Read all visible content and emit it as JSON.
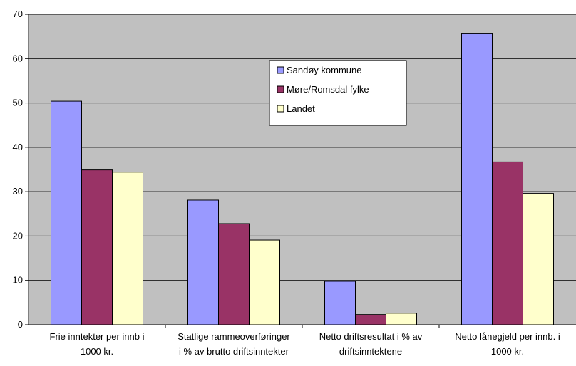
{
  "chart_data": {
    "type": "bar",
    "categories": [
      [
        "Frie inntekter per innb i",
        "1000 kr."
      ],
      [
        "Statlige rammeoverføringer",
        "i % av brutto driftsinntekter"
      ],
      [
        "Netto driftsresultat i % av",
        "driftsinntektene"
      ],
      [
        "Netto lånegjeld per innb. i",
        "1000 kr."
      ]
    ],
    "series": [
      {
        "name": "Sandøy kommune",
        "values": [
          50.4,
          28.1,
          9.8,
          65.6
        ]
      },
      {
        "name": "Møre/Romsdal fylke",
        "values": [
          34.9,
          22.8,
          2.3,
          36.7
        ]
      },
      {
        "name": "Landet",
        "values": [
          34.4,
          19.1,
          2.6,
          29.6
        ]
      }
    ],
    "ylim": [
      0,
      70
    ],
    "yticks": [
      0,
      10,
      20,
      30,
      40,
      50,
      60,
      70
    ],
    "grid": true,
    "legend": "top-center",
    "colors": {
      "plot_background": "#c0c0c0",
      "series": [
        "#9999ff",
        "#993366",
        "#ffffcc"
      ],
      "bar_border": "#000000"
    }
  }
}
